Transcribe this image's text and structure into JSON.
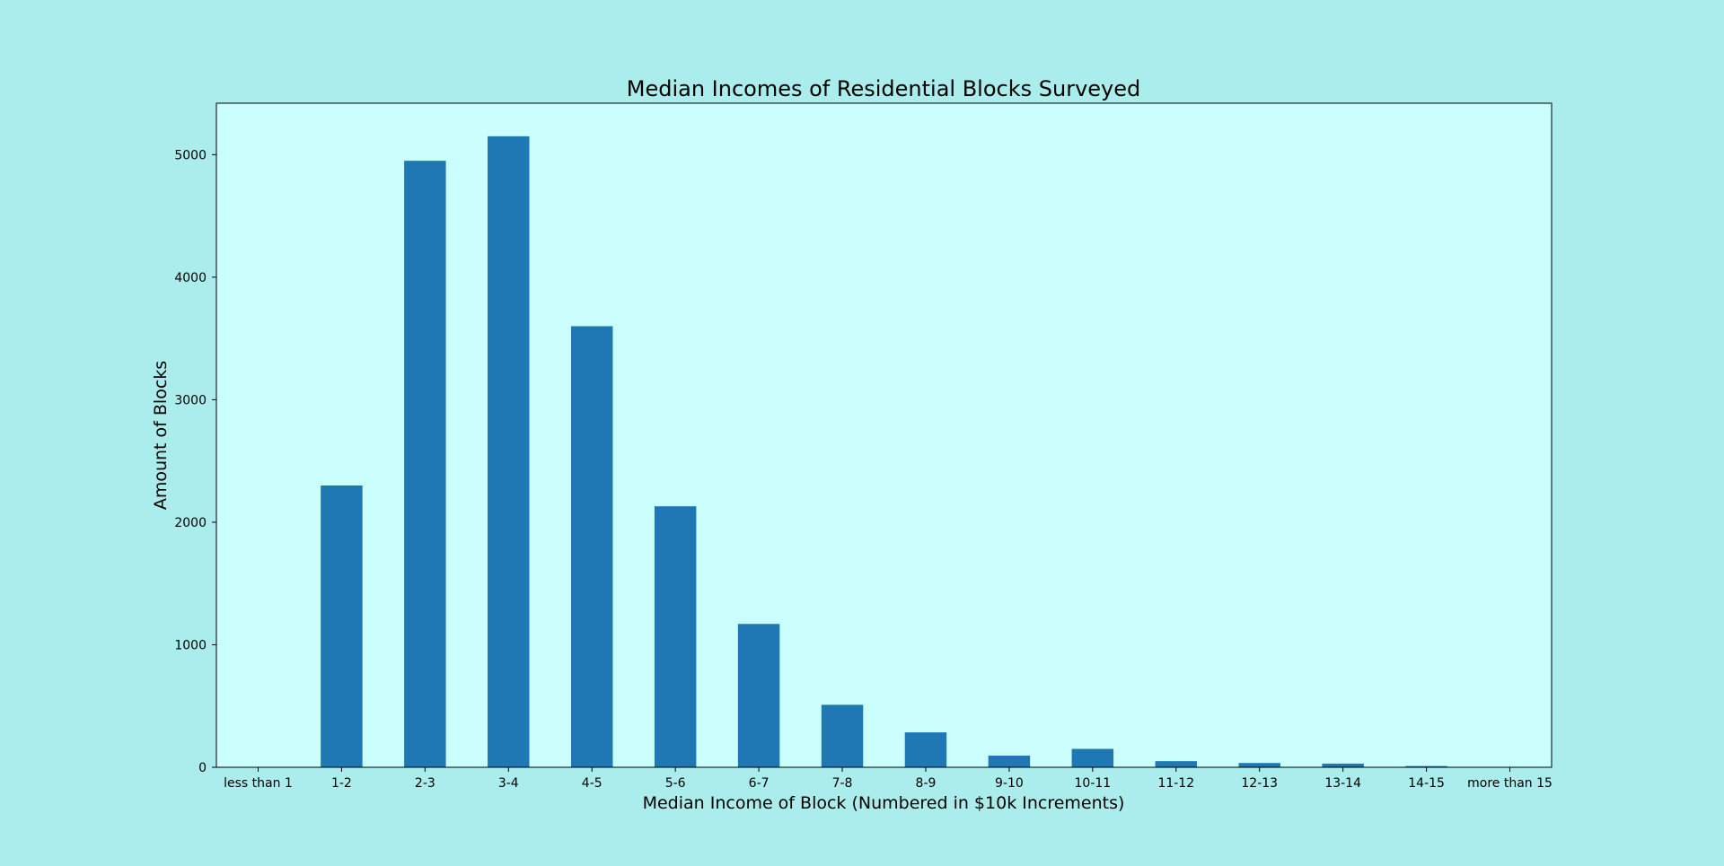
{
  "colors": {
    "figure_background": "#AAEDEC",
    "plot_background": "#CAFFFD",
    "bar": "#1F77B4",
    "axis": "#000000"
  },
  "chart_data": {
    "type": "bar",
    "title": "Median Incomes of Residential Blocks Surveyed",
    "xlabel": "Median Income of Block (Numbered in $10k Increments)",
    "ylabel": "Amount of Blocks",
    "categories": [
      "less than 1",
      "1-2",
      "2-3",
      "3-4",
      "4-5",
      "5-6",
      "6-7",
      "7-8",
      "8-9",
      "9-10",
      "10-11",
      "11-12",
      "12-13",
      "13-14",
      "14-15",
      "more than 15"
    ],
    "values": [
      0,
      2300,
      4950,
      5150,
      3600,
      2130,
      1170,
      510,
      285,
      95,
      150,
      50,
      35,
      30,
      10,
      0
    ],
    "ylim": [
      0,
      5420
    ],
    "yticks": [
      0,
      1000,
      2000,
      3000,
      4000,
      5000
    ],
    "grid": false,
    "legend": "none"
  }
}
